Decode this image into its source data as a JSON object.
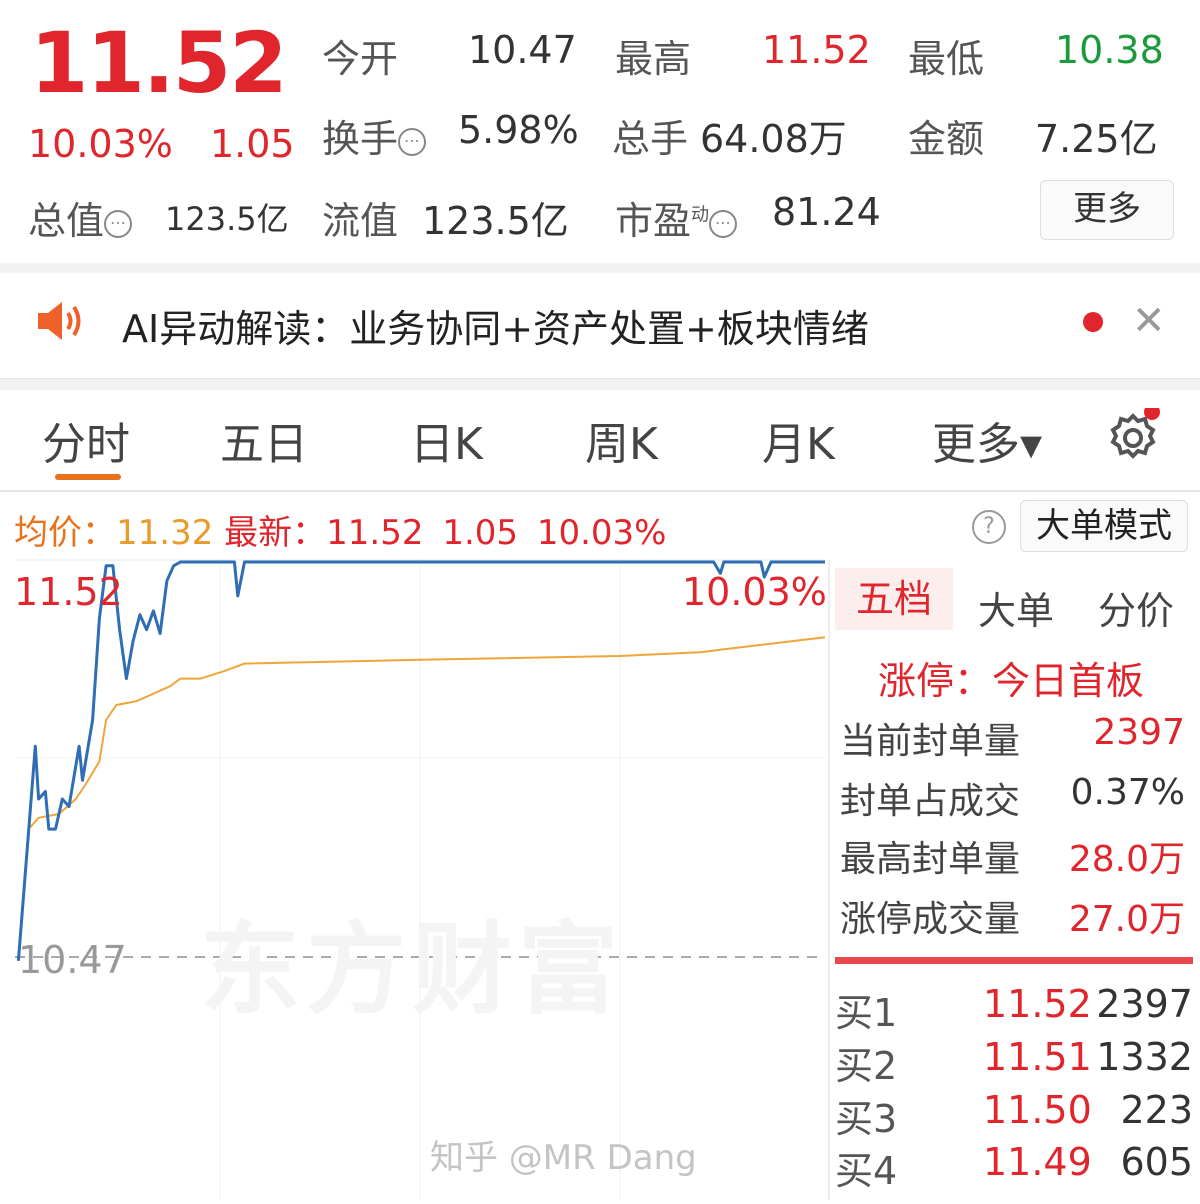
{
  "quote": {
    "price": "11.52",
    "change_pct": "10.03%",
    "change": "1.05",
    "open_label": "今开",
    "open": "10.47",
    "high_label": "最高",
    "high": "11.52",
    "low_label": "最低",
    "low": "10.38",
    "turnover_label": "换手",
    "turnover": "5.98%",
    "volume_label": "总手",
    "volume": "64.08万",
    "amount_label": "金额",
    "amount": "7.25亿",
    "mktcap_label": "总值",
    "mktcap": "123.5亿",
    "float_label": "流值",
    "float": "123.5亿",
    "pe_label": "市盈",
    "pe_sup": "动",
    "pe": "81.24",
    "more_label": "更多",
    "info_icon": "info-circle-icon"
  },
  "banner": {
    "text": "AI异动解读：业务协同+资产处置+板块情绪",
    "icon": "speaker-icon",
    "dot_color": "#e0262c",
    "close_icon": "close-icon"
  },
  "tabs": [
    {
      "label": "分时",
      "active": true
    },
    {
      "label": "五日"
    },
    {
      "label": "日K"
    },
    {
      "label": "周K"
    },
    {
      "label": "月K"
    },
    {
      "label": "更多▾"
    }
  ],
  "settings_icon": "gear-icon",
  "info_bar": {
    "avg_label": "均价：",
    "avg": "11.32",
    "latest_label": "最新：",
    "latest": "11.52",
    "change": "1.05",
    "change_pct": "10.03%",
    "help_icon": "question-circle-icon",
    "big_order_label": "大单模式"
  },
  "chart_data": {
    "type": "line",
    "top_left_label": "11.52",
    "top_right_label": "10.03%",
    "base_label": "10.47",
    "ylim": [
      10.47,
      11.52
    ],
    "xlim": [
      0,
      240
    ],
    "series": [
      {
        "color": "#2f6db5",
        "x": [
          1,
          6,
          7,
          9,
          10,
          12,
          14,
          16,
          19,
          20,
          23,
          25,
          27,
          29,
          31,
          33,
          35,
          37,
          39,
          41,
          43,
          45,
          47,
          49,
          65,
          66,
          68,
          207,
          209,
          210,
          221,
          222,
          224,
          240
        ],
        "y": [
          10.46,
          11.03,
          10.89,
          10.91,
          10.81,
          10.81,
          10.89,
          10.87,
          11.03,
          10.94,
          11.1,
          11.37,
          11.51,
          11.51,
          11.34,
          11.21,
          11.31,
          11.38,
          11.34,
          11.39,
          11.33,
          11.47,
          11.51,
          11.52,
          11.52,
          11.43,
          11.52,
          11.52,
          11.49,
          11.52,
          11.52,
          11.48,
          11.52,
          11.52
        ]
      },
      {
        "color": "#f0a53a",
        "x": [
          1,
          4,
          7,
          13,
          18,
          21,
          25,
          27,
          30,
          36,
          41,
          46,
          49,
          55,
          62,
          68,
          120,
          179,
          203,
          212,
          240
        ],
        "y": [
          10.46,
          10.81,
          10.84,
          10.85,
          10.89,
          10.93,
          10.99,
          11.1,
          11.14,
          11.15,
          11.17,
          11.19,
          11.21,
          11.21,
          11.23,
          11.25,
          11.26,
          11.27,
          11.28,
          11.29,
          11.32
        ]
      }
    ],
    "grid": true,
    "watermark": "东方财富"
  },
  "panel": {
    "tabs": [
      {
        "label": "五档",
        "active": true
      },
      {
        "label": "大单"
      },
      {
        "label": "分价"
      }
    ],
    "limit_title": "涨停：今日首板",
    "stats": [
      {
        "label": "当前封单量",
        "value": "2397",
        "color": "#e0262c"
      },
      {
        "label": "封单占成交",
        "value": "0.37%",
        "color": "#333"
      },
      {
        "label": "最高封单量",
        "value": "28.0万",
        "color": "#e0262c"
      },
      {
        "label": "涨停成交量",
        "value": "27.0万",
        "color": "#e0262c"
      }
    ],
    "bids": [
      {
        "label": "买1",
        "price": "11.52",
        "qty": "2397"
      },
      {
        "label": "买2",
        "price": "11.51",
        "qty": "1332"
      },
      {
        "label": "买3",
        "price": "11.50",
        "qty": "223"
      },
      {
        "label": "买4",
        "price": "11.49",
        "qty": "605"
      }
    ]
  },
  "watermark": "知乎 @MR Dang"
}
